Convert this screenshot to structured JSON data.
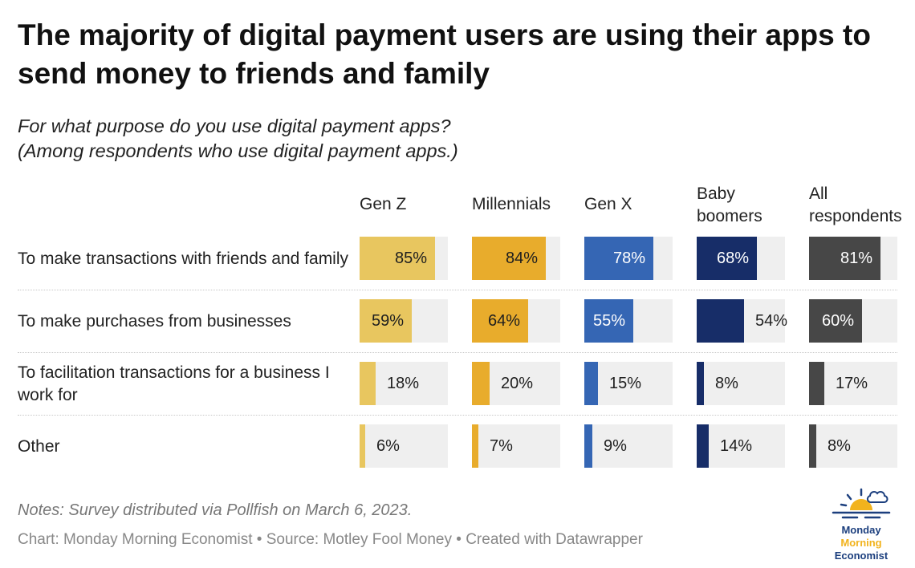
{
  "title": "The majority of digital payment users are using their apps to send money to friends and family",
  "subtitle_line1": "For what purpose do you use digital payment apps?",
  "subtitle_line2": "(Among respondents who use digital payment apps.)",
  "notes": "Notes: Survey distributed via Pollfish on March 6, 2023.",
  "source": "Chart: Monday Morning Economist • Source: Motley Fool Money • Created with Datawrapper",
  "logo": {
    "line1": "Monday",
    "line2": "Morning",
    "line3": "Economist"
  },
  "colors": {
    "gen_z": "#e8c65f",
    "millennials": "#e8ac2c",
    "gen_x": "#3566b4",
    "boomers": "#172d68",
    "all": "#474747",
    "track": "#efefef",
    "logo_blue": "#1c3f7e",
    "logo_gold": "#f2b31d"
  },
  "chart_data": {
    "type": "bar",
    "orientation": "horizontal",
    "value_suffix": "%",
    "range": [
      0,
      100
    ],
    "categories": [
      "To make transactions with friends and family",
      "To make purchases from businesses",
      "To facilitation transactions for a business I work for",
      "Other"
    ],
    "series": [
      {
        "name": "Gen Z",
        "name_lines": [
          "Gen Z"
        ],
        "color_key": "gen_z",
        "values": [
          85,
          59,
          18,
          6
        ]
      },
      {
        "name": "Millennials",
        "name_lines": [
          "Millennials"
        ],
        "color_key": "millennials",
        "values": [
          84,
          64,
          20,
          7
        ]
      },
      {
        "name": "Gen X",
        "name_lines": [
          "Gen X"
        ],
        "color_key": "gen_x",
        "values": [
          78,
          55,
          15,
          9
        ]
      },
      {
        "name": "Baby boomers",
        "name_lines": [
          "Baby",
          "boomers"
        ],
        "color_key": "boomers",
        "values": [
          68,
          54,
          8,
          14
        ]
      },
      {
        "name": "All respondents",
        "name_lines": [
          "All",
          "respondents"
        ],
        "color_key": "all",
        "values": [
          81,
          60,
          17,
          8
        ]
      }
    ]
  }
}
